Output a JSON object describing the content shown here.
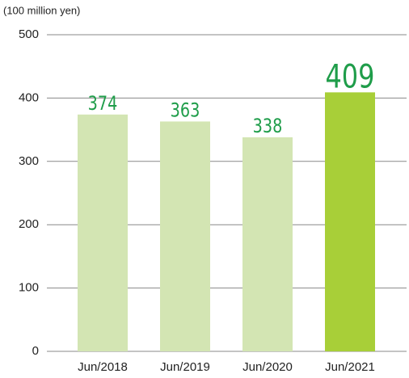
{
  "chart_data": {
    "type": "bar",
    "y_label": "(100 million yen)",
    "categories": [
      "Jun/2018",
      "Jun/2019",
      "Jun/2020",
      "Jun/2021"
    ],
    "values": [
      374,
      363,
      338,
      409
    ],
    "colors": [
      "#d3e5b3",
      "#d3e5b3",
      "#d3e5b3",
      "#a8cf38"
    ],
    "ylim": [
      0,
      500
    ],
    "yticks": [
      0,
      100,
      200,
      300,
      400,
      500
    ],
    "grid": true
  }
}
